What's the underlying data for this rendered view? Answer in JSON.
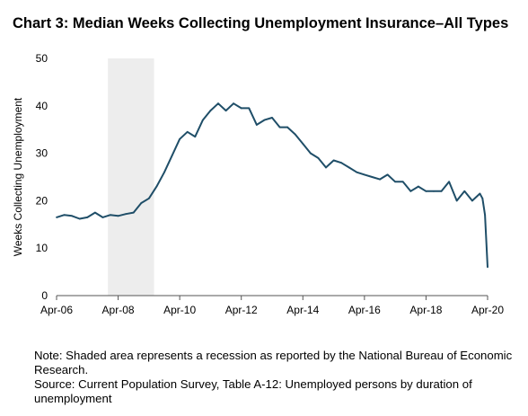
{
  "title": "Chart 3: Median Weeks Collecting Unemployment Insurance–All Types",
  "note": "Note: Shaded area represents a recession as reported by the National Bureau of Economic Research.",
  "source": "Source: Current Population Survey, Table A-12: Unemployed persons by duration of unemployment",
  "colors": {
    "line": "#1f4e68",
    "recession_shade": "#ededed",
    "axis": "#555555"
  },
  "chart_data": {
    "type": "line",
    "title": "Chart 3: Median Weeks Collecting Unemployment Insurance–All Types",
    "xlabel": "",
    "ylabel": "Weeks Collecting Unemployment",
    "ylim": [
      0,
      50
    ],
    "y_ticks": [
      0,
      10,
      20,
      30,
      40,
      50
    ],
    "x_ticks": [
      "Apr-06",
      "Apr-08",
      "Apr-10",
      "Apr-12",
      "Apr-14",
      "Apr-16",
      "Apr-18",
      "Apr-20"
    ],
    "xlim": [
      "2006-04",
      "2020-04"
    ],
    "grid": false,
    "legend": "none",
    "shaded_regions": [
      {
        "start": "2007-12",
        "end": "2009-06",
        "label": "Recession"
      }
    ],
    "series": [
      {
        "x": [
          "2006-04",
          "2006-07",
          "2006-10",
          "2007-01",
          "2007-04",
          "2007-07",
          "2007-10",
          "2008-01",
          "2008-04",
          "2008-07",
          "2008-10",
          "2009-01",
          "2009-04",
          "2009-07",
          "2009-10",
          "2010-01",
          "2010-04",
          "2010-07",
          "2010-10",
          "2011-01",
          "2011-04",
          "2011-07",
          "2011-10",
          "2012-01",
          "2012-04",
          "2012-07",
          "2012-10",
          "2013-01",
          "2013-04",
          "2013-07",
          "2013-10",
          "2014-01",
          "2014-04",
          "2014-07",
          "2014-10",
          "2015-01",
          "2015-04",
          "2015-07",
          "2015-10",
          "2016-01",
          "2016-04",
          "2016-07",
          "2016-10",
          "2017-01",
          "2017-04",
          "2017-07",
          "2017-10",
          "2018-01",
          "2018-04",
          "2018-07",
          "2018-10",
          "2019-01",
          "2019-04",
          "2019-07",
          "2019-10",
          "2020-01",
          "2020-02",
          "2020-03",
          "2020-04"
        ],
        "y": [
          16.5,
          17,
          16.8,
          16.2,
          16.5,
          17.5,
          16.5,
          17,
          16.8,
          17.2,
          17.5,
          19.5,
          20.5,
          23,
          26,
          29.5,
          33,
          34.5,
          33.5,
          37,
          39,
          40.5,
          39,
          40.5,
          39.5,
          39.5,
          36,
          37,
          37.5,
          35.5,
          35.5,
          34,
          32,
          30,
          29,
          27,
          28.5,
          28,
          27,
          26,
          25.5,
          25,
          24.5,
          25.5,
          24,
          24,
          22,
          23,
          22,
          22,
          22,
          24,
          20,
          22,
          20,
          21.5,
          20.5,
          17,
          6
        ]
      }
    ]
  }
}
